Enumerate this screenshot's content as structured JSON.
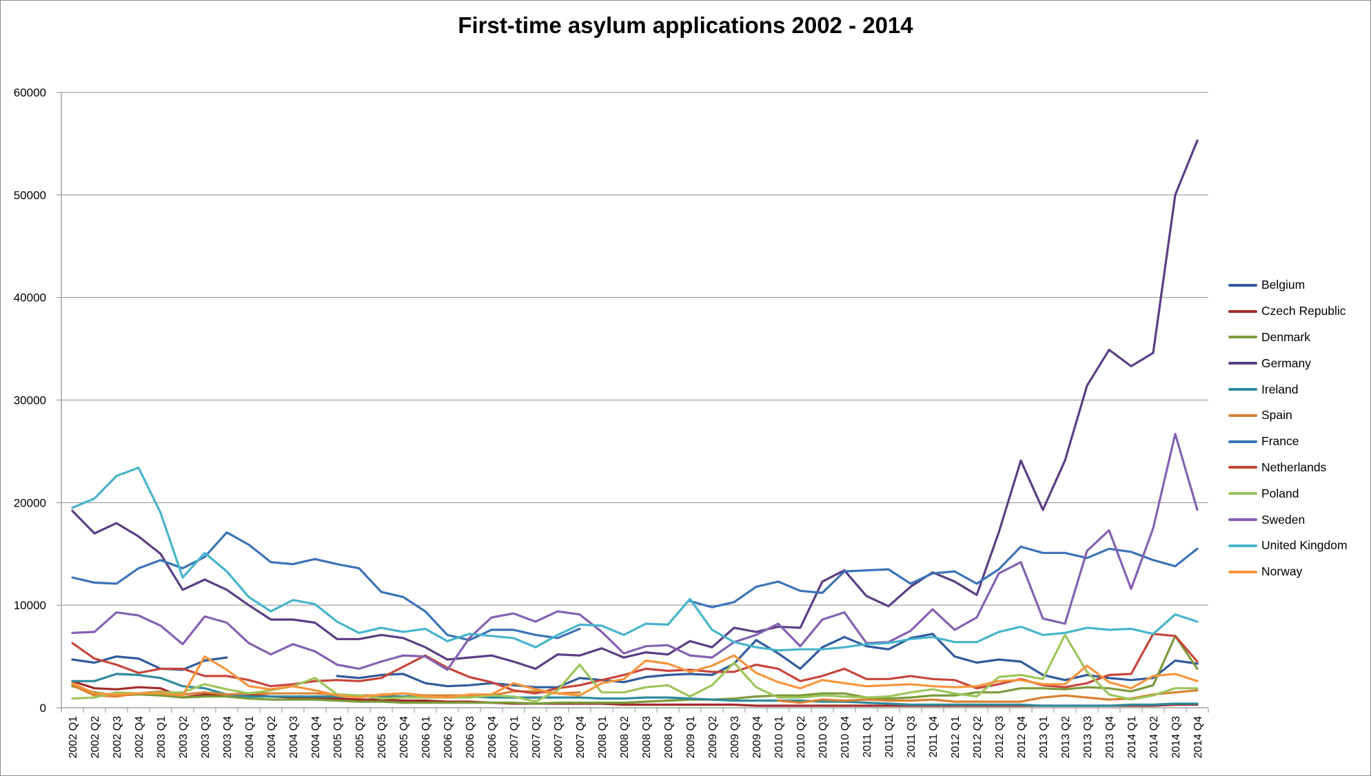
{
  "chart_data": {
    "type": "line",
    "title": "First-time asylum applications 2002 - 2014",
    "xlabel": "",
    "ylabel": "",
    "ylim": [
      0,
      60000
    ],
    "yticks": [
      "0",
      "10000",
      "20000",
      "30000",
      "40000",
      "50000",
      "60000"
    ],
    "grid": "horizontal",
    "legend_position": "right",
    "categories": [
      "2002 Q1",
      "2002 Q2",
      "2002 Q3",
      "2002 Q4",
      "2003 Q1",
      "2003 Q2",
      "2003 Q3",
      "2003 Q4",
      "2004 Q1",
      "2004 Q2",
      "2004 Q3",
      "2004 Q4",
      "2005 Q1",
      "2005 Q2",
      "2005 Q3",
      "2005 Q4",
      "2006 Q1",
      "2006 Q2",
      "2006 Q3",
      "2006 Q4",
      "2007 Q1",
      "2007 Q2",
      "2007 Q3",
      "2007 Q4",
      "2008 Q1",
      "2008 Q2",
      "2008 Q3",
      "2008 Q4",
      "2009 Q1",
      "2009 Q2",
      "2009 Q3",
      "2009 Q4",
      "2010 Q1",
      "2010 Q2",
      "2010 Q3",
      "2010 Q4",
      "2011 Q1",
      "2011 Q2",
      "2011 Q3",
      "2011 Q4",
      "2012 Q1",
      "2012 Q2",
      "2012 Q3",
      "2012 Q4",
      "2013 Q1",
      "2013 Q2",
      "2013 Q3",
      "2013 Q4",
      "2014 Q1",
      "2014 Q2",
      "2014 Q3",
      "2014 Q4"
    ],
    "series": [
      {
        "name": "Belgium",
        "color": "#2f5a9b",
        "values": [
          4700,
          4400,
          5000,
          4800,
          3800,
          3700,
          4600,
          4900,
          null,
          null,
          null,
          null,
          3100,
          2900,
          3200,
          3300,
          2400,
          2100,
          2200,
          2400,
          2200,
          2000,
          2000,
          2900,
          2700,
          2500,
          3000,
          3200,
          3300,
          3200,
          4300,
          6600,
          5300,
          3800,
          5900,
          6900,
          6000,
          5700,
          6800,
          7200,
          5000,
          4400,
          4700,
          4500,
          3200,
          2700,
          3200,
          2900,
          2700,
          2900,
          4600,
          4300
        ]
      },
      {
        "name": "Czech Republic",
        "color": "#a12b28",
        "values": [
          2600,
          1900,
          1800,
          2000,
          1900,
          1000,
          1300,
          1300,
          1300,
          1100,
          1000,
          1000,
          900,
          800,
          800,
          700,
          700,
          600,
          600,
          500,
          400,
          400,
          400,
          400,
          400,
          300,
          300,
          300,
          300,
          300,
          300,
          200,
          200,
          200,
          200,
          200,
          200,
          200,
          200,
          200,
          200,
          200,
          200,
          200,
          200,
          200,
          200,
          200,
          200,
          200,
          300,
          300
        ]
      },
      {
        "name": "Denmark",
        "color": "#7b9a3a",
        "values": [
          2100,
          1500,
          1200,
          1300,
          1200,
          1000,
          1100,
          1100,
          900,
          800,
          800,
          800,
          700,
          600,
          600,
          500,
          500,
          500,
          500,
          500,
          500,
          400,
          500,
          500,
          500,
          500,
          600,
          700,
          800,
          800,
          900,
          1100,
          1200,
          1200,
          1400,
          1400,
          1000,
          900,
          1000,
          1200,
          1200,
          1500,
          1500,
          1900,
          1900,
          1800,
          2000,
          1900,
          1600,
          2200,
          7000,
          3800
        ]
      },
      {
        "name": "Germany",
        "color": "#5b3d84",
        "values": [
          19200,
          17000,
          18000,
          16700,
          15000,
          11500,
          12500,
          11500,
          10000,
          8600,
          8600,
          8300,
          6700,
          6700,
          7100,
          6800,
          5900,
          4700,
          4900,
          5100,
          4500,
          3800,
          5200,
          5100,
          5800,
          4900,
          5400,
          5200,
          6500,
          5900,
          7800,
          7400,
          7900,
          7800,
          12300,
          13400,
          10900,
          9900,
          11800,
          13200,
          12300,
          11000,
          17100,
          24100,
          19300,
          24100,
          31400,
          34900,
          33300,
          34600,
          50000,
          55300
        ]
      },
      {
        "name": "Ireland",
        "color": "#2f8a9d",
        "values": [
          2600,
          2600,
          3300,
          3200,
          2900,
          2100,
          1900,
          1300,
          1100,
          1100,
          1100,
          1100,
          1100,
          1100,
          1100,
          1100,
          1100,
          1100,
          1100,
          1000,
          1000,
          1000,
          1000,
          1000,
          900,
          900,
          1000,
          1000,
          900,
          800,
          700,
          700,
          700,
          700,
          600,
          600,
          500,
          400,
          300,
          300,
          300,
          300,
          300,
          300,
          200,
          200,
          200,
          200,
          300,
          300,
          400,
          400
        ]
      },
      {
        "name": "Spain",
        "color": "#d98233",
        "values": [
          2200,
          1200,
          1100,
          1400,
          1600,
          1300,
          1500,
          1300,
          1400,
          1400,
          1400,
          1400,
          1300,
          1200,
          1200,
          1400,
          1200,
          1200,
          1200,
          1200,
          1600,
          1600,
          1400,
          1500,
          null,
          null,
          null,
          null,
          null,
          null,
          null,
          null,
          700,
          500,
          800,
          700,
          800,
          700,
          700,
          800,
          600,
          600,
          600,
          600,
          1000,
          1200,
          1000,
          800,
          900,
          1300,
          1500,
          1700
        ]
      },
      {
        "name": "France",
        "color": "#3b72b8",
        "values": [
          12700,
          12200,
          12100,
          13600,
          14400,
          13600,
          14700,
          17100,
          15900,
          14200,
          14000,
          14500,
          14000,
          13600,
          11300,
          10800,
          9400,
          7100,
          6600,
          7600,
          7600,
          7100,
          6800,
          7700,
          null,
          null,
          null,
          null,
          10400,
          9800,
          10300,
          11800,
          12300,
          11400,
          11200,
          13300,
          13400,
          13500,
          12100,
          13100,
          13300,
          12100,
          13500,
          15700,
          15100,
          15100,
          14600,
          15500,
          15200,
          14400,
          13800,
          15500
        ]
      },
      {
        "name": "Netherlands",
        "color": "#c7453b",
        "values": [
          6300,
          4800,
          4200,
          3400,
          3800,
          3800,
          3100,
          3100,
          2700,
          2100,
          2300,
          2600,
          2700,
          2600,
          2900,
          4000,
          5100,
          3900,
          3000,
          2500,
          1700,
          1400,
          1900,
          2200,
          2700,
          3200,
          3800,
          3600,
          3700,
          3500,
          3500,
          4200,
          3800,
          2600,
          3100,
          3800,
          2800,
          2800,
          3100,
          2800,
          2700,
          1900,
          2300,
          2800,
          2200,
          2000,
          2400,
          3200,
          3300,
          7200,
          7000,
          4500
        ]
      },
      {
        "name": "Poland",
        "color": "#9cc55a",
        "values": [
          900,
          1000,
          1500,
          1400,
          1500,
          1500,
          2300,
          1800,
          1400,
          1700,
          2100,
          2900,
          1300,
          1200,
          900,
          1000,
          1000,
          1000,
          1000,
          1200,
          1100,
          600,
          1700,
          4200,
          1500,
          1500,
          2000,
          2200,
          1100,
          2200,
          4400,
          2000,
          1000,
          1000,
          1200,
          1100,
          1000,
          1100,
          1500,
          1800,
          1400,
          1100,
          3000,
          3200,
          2800,
          7100,
          3500,
          1300,
          800,
          1200,
          1900,
          1900
        ]
      },
      {
        "name": "Sweden",
        "color": "#8460b1",
        "values": [
          7300,
          7400,
          9300,
          9000,
          8000,
          6200,
          8900,
          8300,
          6300,
          5200,
          6200,
          5500,
          4200,
          3800,
          4500,
          5100,
          5000,
          3700,
          6800,
          8800,
          9200,
          8400,
          9400,
          9100,
          7400,
          5300,
          6000,
          6100,
          5100,
          4900,
          6400,
          7100,
          8200,
          6000,
          8600,
          9300,
          6300,
          6400,
          7500,
          9600,
          7600,
          8800,
          13100,
          14200,
          8700,
          8200,
          15300,
          17300,
          11600,
          17500,
          26700,
          19300
        ]
      },
      {
        "name": "United Kingdom",
        "color": "#46b4cc",
        "values": [
          19500,
          20400,
          22600,
          23400,
          19000,
          12700,
          15100,
          13300,
          10800,
          9400,
          10500,
          10100,
          8400,
          7300,
          7800,
          7400,
          7700,
          6500,
          7200,
          7000,
          6800,
          5900,
          7100,
          8100,
          8000,
          7100,
          8200,
          8100,
          10600,
          7600,
          6400,
          5900,
          5600,
          5700,
          5700,
          5900,
          6200,
          6300,
          6700,
          6900,
          6400,
          6400,
          7400,
          7900,
          7100,
          7300,
          7800,
          7600,
          7700,
          7200,
          9100,
          8400
        ]
      },
      {
        "name": "Norway",
        "color": "#f7953c",
        "values": [
          2400,
          1400,
          1300,
          1400,
          1400,
          1200,
          5000,
          3700,
          2100,
          1800,
          2100,
          1700,
          1200,
          1000,
          1300,
          1400,
          1100,
          1000,
          1300,
          1300,
          2400,
          1800,
          1400,
          1200,
          2400,
          2800,
          4600,
          4300,
          3500,
          4100,
          5100,
          3400,
          2500,
          1900,
          2700,
          2400,
          2100,
          2200,
          2300,
          2100,
          2000,
          2100,
          2600,
          2700,
          2300,
          2300,
          4100,
          2500,
          1900,
          3100,
          3300,
          2600
        ]
      }
    ]
  }
}
